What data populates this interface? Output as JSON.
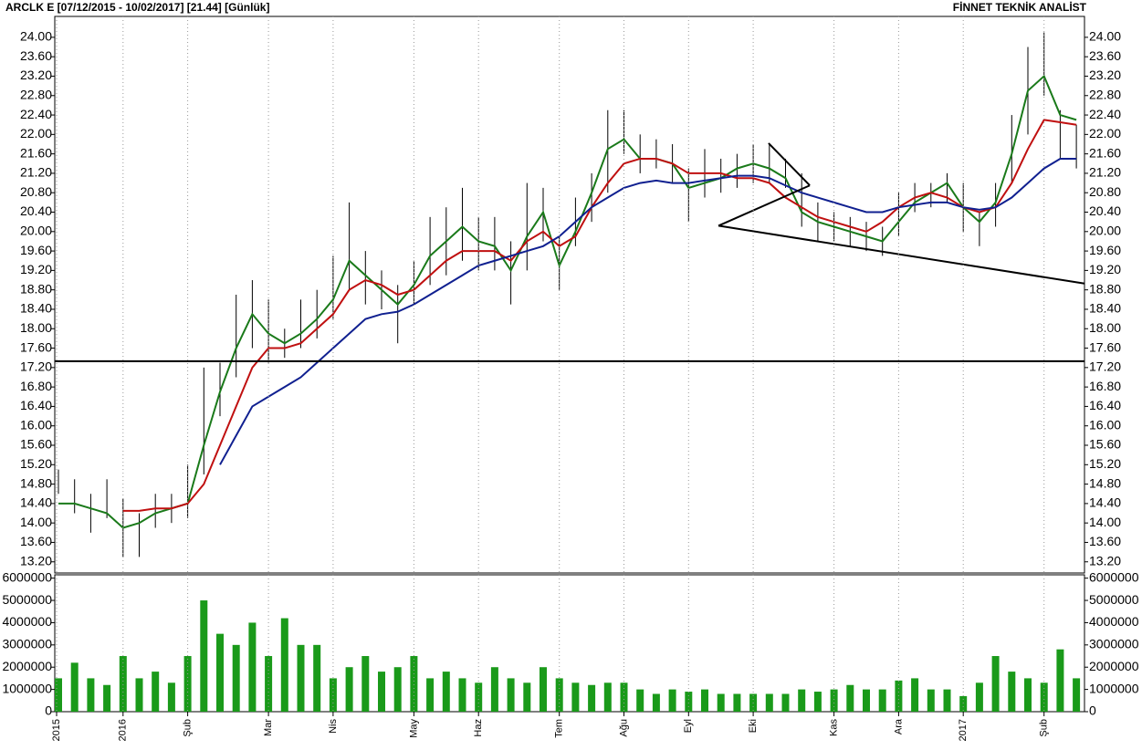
{
  "chart_data": [
    {
      "type": "ohlc",
      "title": "ARCLK E  [07/12/2015 - 10/02/2017]  [21.44]  [Günlük]",
      "brand": "FİNNET TEKNİK ANALİST",
      "categories": [
        "2015",
        null,
        null,
        null,
        "2016",
        null,
        null,
        null,
        "Şub",
        null,
        null,
        null,
        null,
        "Mar",
        null,
        null,
        null,
        "Nis",
        null,
        null,
        null,
        null,
        "May",
        null,
        null,
        null,
        "Haz",
        null,
        null,
        null,
        null,
        "Tem",
        null,
        null,
        null,
        "Ağu",
        null,
        null,
        null,
        "Eyl",
        null,
        null,
        null,
        "Eki",
        null,
        null,
        null,
        null,
        "Kas",
        null,
        null,
        null,
        "Ara",
        null,
        null,
        null,
        "2017",
        null,
        null,
        null,
        null,
        "Şub",
        null,
        null
      ],
      "high": [
        15.1,
        14.9,
        14.6,
        14.9,
        14.5,
        14.2,
        14.6,
        14.6,
        15.2,
        17.2,
        17.3,
        18.7,
        19.0,
        18.6,
        18.0,
        18.6,
        18.8,
        19.5,
        20.6,
        19.6,
        19.2,
        18.9,
        19.4,
        20.3,
        20.5,
        20.9,
        20.3,
        20.3,
        19.8,
        21.0,
        20.9,
        19.9,
        20.7,
        21.2,
        22.5,
        22.5,
        22.0,
        21.9,
        21.8,
        21.3,
        21.7,
        21.5,
        21.6,
        21.8,
        21.8,
        21.5,
        21.2,
        20.6,
        20.4,
        20.3,
        20.2,
        20.1,
        20.8,
        21.0,
        21.0,
        21.2,
        21.0,
        20.4,
        21.0,
        22.4,
        23.8,
        24.1,
        22.5,
        22.2
      ],
      "low": [
        14.6,
        14.2,
        13.8,
        14.1,
        13.3,
        13.3,
        13.9,
        14.0,
        14.1,
        15.0,
        16.2,
        17.0,
        17.6,
        17.3,
        17.4,
        17.6,
        17.8,
        18.2,
        18.8,
        18.5,
        18.4,
        17.7,
        18.5,
        18.9,
        19.1,
        19.4,
        19.2,
        19.2,
        18.5,
        19.2,
        19.8,
        18.8,
        19.7,
        20.2,
        20.8,
        21.6,
        21.2,
        21.3,
        21.0,
        20.2,
        20.7,
        20.8,
        20.9,
        21.0,
        21.0,
        20.9,
        20.1,
        19.8,
        19.8,
        19.7,
        19.6,
        19.5,
        19.9,
        20.4,
        20.5,
        20.6,
        20.0,
        19.7,
        20.1,
        21.0,
        22.0,
        22.8,
        21.5,
        21.3
      ],
      "bar_color": "#000000",
      "series": [
        {
          "color": "#1a7a1a",
          "values": [
            14.4,
            14.4,
            14.3,
            14.2,
            13.9,
            14.0,
            14.2,
            14.3,
            14.4,
            15.6,
            16.7,
            17.6,
            18.3,
            17.9,
            17.7,
            17.9,
            18.2,
            18.6,
            19.4,
            19.1,
            18.8,
            18.5,
            18.9,
            19.5,
            19.8,
            20.1,
            19.8,
            19.7,
            19.2,
            19.9,
            20.4,
            19.3,
            20.0,
            20.8,
            21.7,
            21.9,
            21.5,
            21.5,
            21.4,
            20.9,
            21.0,
            21.1,
            21.3,
            21.4,
            21.3,
            21.1,
            20.4,
            20.2,
            20.1,
            20.0,
            19.9,
            19.8,
            20.2,
            20.6,
            20.8,
            21.0,
            20.5,
            20.2,
            20.6,
            21.6,
            22.9,
            23.2,
            22.4,
            22.3
          ]
        },
        {
          "color": "#c01010",
          "values": [
            null,
            null,
            null,
            null,
            14.25,
            14.25,
            14.3,
            14.3,
            14.4,
            14.8,
            15.6,
            16.4,
            17.2,
            17.6,
            17.6,
            17.7,
            18.0,
            18.3,
            18.8,
            19.0,
            18.9,
            18.7,
            18.8,
            19.1,
            19.4,
            19.6,
            19.6,
            19.6,
            19.4,
            19.8,
            20.0,
            19.7,
            19.9,
            20.5,
            21.0,
            21.4,
            21.5,
            21.5,
            21.4,
            21.2,
            21.2,
            21.2,
            21.1,
            21.1,
            21.0,
            20.7,
            20.5,
            20.3,
            20.2,
            20.1,
            20.0,
            20.2,
            20.5,
            20.7,
            20.8,
            20.7,
            20.5,
            20.4,
            20.5,
            21.0,
            21.7,
            22.3,
            22.25,
            22.2
          ]
        },
        {
          "color": "#102090",
          "values": [
            null,
            null,
            null,
            null,
            null,
            null,
            null,
            null,
            null,
            null,
            15.2,
            15.8,
            16.4,
            16.6,
            16.8,
            17.0,
            17.3,
            17.6,
            17.9,
            18.2,
            18.3,
            18.35,
            18.5,
            18.7,
            18.9,
            19.1,
            19.3,
            19.4,
            19.5,
            19.6,
            19.7,
            19.9,
            20.2,
            20.5,
            20.7,
            20.9,
            21.0,
            21.05,
            21.0,
            21.0,
            21.05,
            21.1,
            21.15,
            21.15,
            21.1,
            20.95,
            20.8,
            20.7,
            20.6,
            20.5,
            20.4,
            20.4,
            20.5,
            20.55,
            20.6,
            20.6,
            20.5,
            20.45,
            20.5,
            20.7,
            21.0,
            21.3,
            21.5,
            21.5
          ]
        }
      ],
      "lines": [
        {
          "x": [
            -2,
            63.6
          ],
          "y": [
            17.33,
            17.33
          ]
        },
        {
          "x": [
            40.85,
            46.5
          ],
          "y": [
            20.12,
            20.95
          ]
        },
        {
          "x": [
            43.95,
            46.5
          ],
          "y": [
            21.82,
            20.95
          ]
        },
        {
          "x": [
            40.85,
            63.6
          ],
          "y": [
            20.12,
            18.93
          ]
        }
      ],
      "ylim": [
        12.97,
        24.43
      ],
      "yticks": [
        {
          "value": 13.2,
          "label": "13.20"
        },
        {
          "value": 13.6,
          "label": "13.60"
        },
        {
          "value": 14,
          "label": "14.00"
        },
        {
          "value": 14.4,
          "label": "14.40"
        },
        {
          "value": 14.8,
          "label": "14.80"
        },
        {
          "value": 15.2,
          "label": "15.20"
        },
        {
          "value": 15.6,
          "label": "15.60"
        },
        {
          "value": 16,
          "label": "16.00"
        },
        {
          "value": 16.4,
          "label": "16.40"
        },
        {
          "value": 16.8,
          "label": "16.80"
        },
        {
          "value": 17.2,
          "label": "17.20"
        },
        {
          "value": 17.6,
          "label": "17.60"
        },
        {
          "value": 18,
          "label": "18.00"
        },
        {
          "value": 18.4,
          "label": "18.40"
        },
        {
          "value": 18.8,
          "label": "18.80"
        },
        {
          "value": 19.2,
          "label": "19.20"
        },
        {
          "value": 19.6,
          "label": "19.60"
        },
        {
          "value": 20,
          "label": "20.00"
        },
        {
          "value": 20.4,
          "label": "20.40"
        },
        {
          "value": 20.8,
          "label": "20.80"
        },
        {
          "value": 21.2,
          "label": "21.20"
        },
        {
          "value": 21.6,
          "label": "21.60"
        },
        {
          "value": 22,
          "label": "22.00"
        },
        {
          "value": 22.4,
          "label": "22.40"
        },
        {
          "value": 22.8,
          "label": "22.80"
        },
        {
          "value": 23.2,
          "label": "23.20"
        },
        {
          "value": 23.6,
          "label": "23.60"
        },
        {
          "value": 24,
          "label": "24.00"
        }
      ]
    },
    {
      "type": "bar",
      "color": "#1a9a1a",
      "values": [
        1500000,
        2200000,
        1500000,
        1200000,
        2500000,
        1500000,
        1800000,
        1300000,
        2500000,
        5000000,
        3500000,
        3000000,
        4000000,
        2500000,
        4200000,
        3000000,
        3000000,
        1500000,
        2000000,
        2500000,
        1800000,
        2000000,
        2500000,
        1500000,
        1800000,
        1500000,
        1300000,
        2000000,
        1500000,
        1300000,
        2000000,
        1500000,
        1300000,
        1200000,
        1300000,
        1300000,
        1000000,
        800000,
        1000000,
        900000,
        1000000,
        800000,
        800000,
        800000,
        800000,
        800000,
        1000000,
        900000,
        1000000,
        1200000,
        1000000,
        1000000,
        1400000,
        1500000,
        1000000,
        1000000,
        700000,
        1300000,
        2500000,
        1800000,
        1500000,
        1300000,
        2800000,
        1500000
      ],
      "ylim": [
        0,
        6150000
      ],
      "yticks": [
        0,
        1000000,
        2000000,
        3000000,
        4000000,
        5000000,
        6000000
      ]
    }
  ]
}
